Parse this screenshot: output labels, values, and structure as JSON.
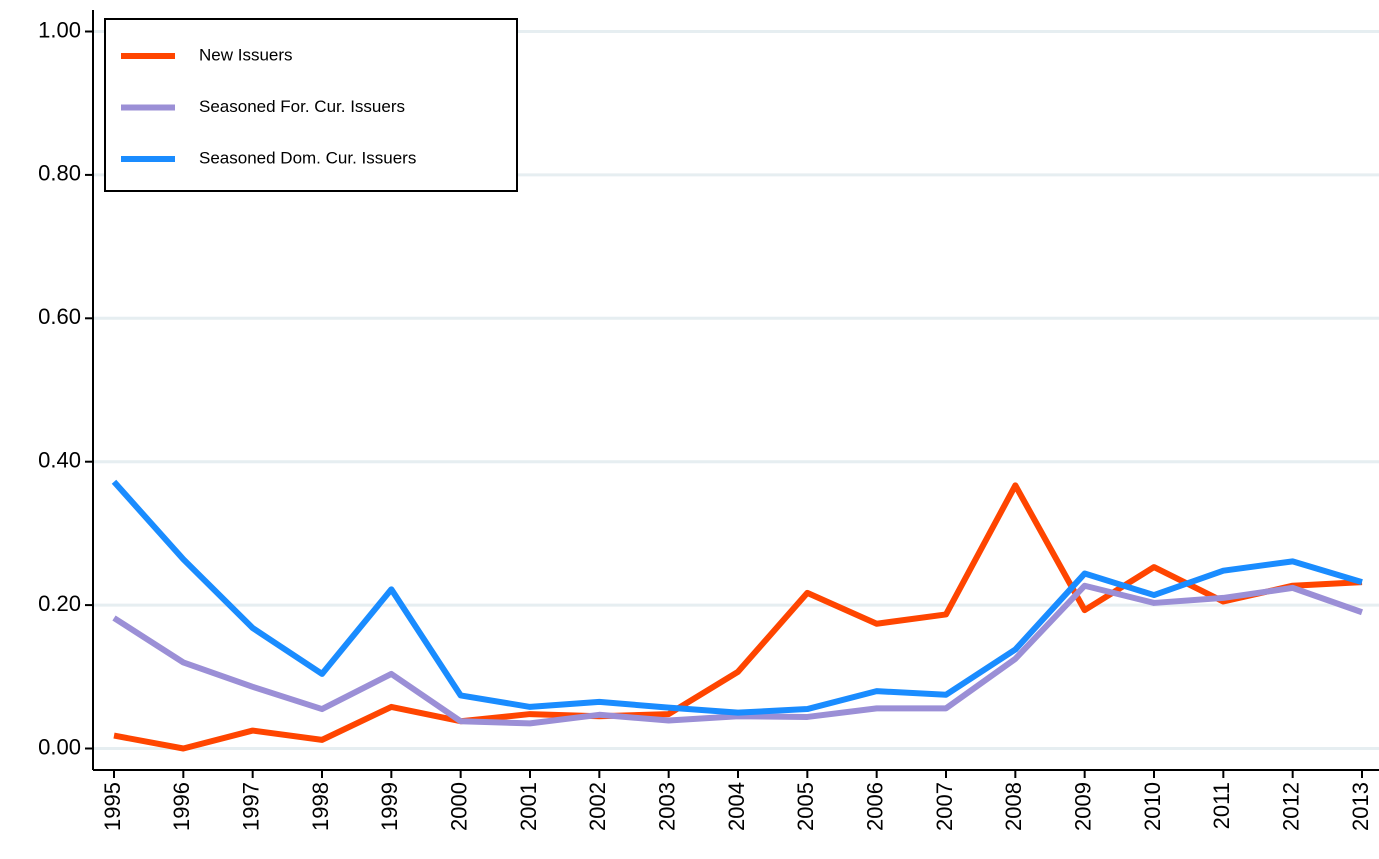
{
  "chart_data": {
    "type": "line",
    "categories": [
      "1995",
      "1996",
      "1997",
      "1998",
      "1999",
      "2000",
      "2001",
      "2002",
      "2003",
      "2004",
      "2005",
      "2006",
      "2007",
      "2008",
      "2009",
      "2010",
      "2011",
      "2012",
      "2013"
    ],
    "series": [
      {
        "name": "New Issuers",
        "color": "#ff4500",
        "values": [
          0.018,
          0.0,
          0.025,
          0.012,
          0.058,
          0.038,
          0.048,
          0.045,
          0.048,
          0.107,
          0.217,
          0.174,
          0.187,
          0.367,
          0.193,
          0.253,
          0.205,
          0.227,
          0.232
        ]
      },
      {
        "name": "Seasoned For. Cur. Issuers",
        "color": "#9b8fd6",
        "values": [
          0.182,
          0.12,
          0.086,
          0.055,
          0.104,
          0.038,
          0.035,
          0.047,
          0.039,
          0.045,
          0.044,
          0.056,
          0.056,
          0.125,
          0.227,
          0.203,
          0.21,
          0.224,
          0.19
        ]
      },
      {
        "name": "Seasoned Dom. Cur. Issuers",
        "color": "#1a8cff",
        "values": [
          0.372,
          0.264,
          0.168,
          0.104,
          0.222,
          0.074,
          0.058,
          0.065,
          0.057,
          0.05,
          0.055,
          0.08,
          0.075,
          0.138,
          0.244,
          0.214,
          0.248,
          0.261,
          0.232
        ]
      }
    ],
    "ylim": [
      -0.03,
      1.03
    ],
    "yticks": [
      {
        "value": 0,
        "label": "0.00"
      },
      {
        "value": 0.2,
        "label": "0.20"
      },
      {
        "value": 0.4,
        "label": "0.40"
      },
      {
        "value": 0.6,
        "label": "0.60"
      },
      {
        "value": 0.8,
        "label": "0.80"
      },
      {
        "value": 1,
        "label": "1.00"
      }
    ],
    "grid": true,
    "legend": "upper left"
  }
}
